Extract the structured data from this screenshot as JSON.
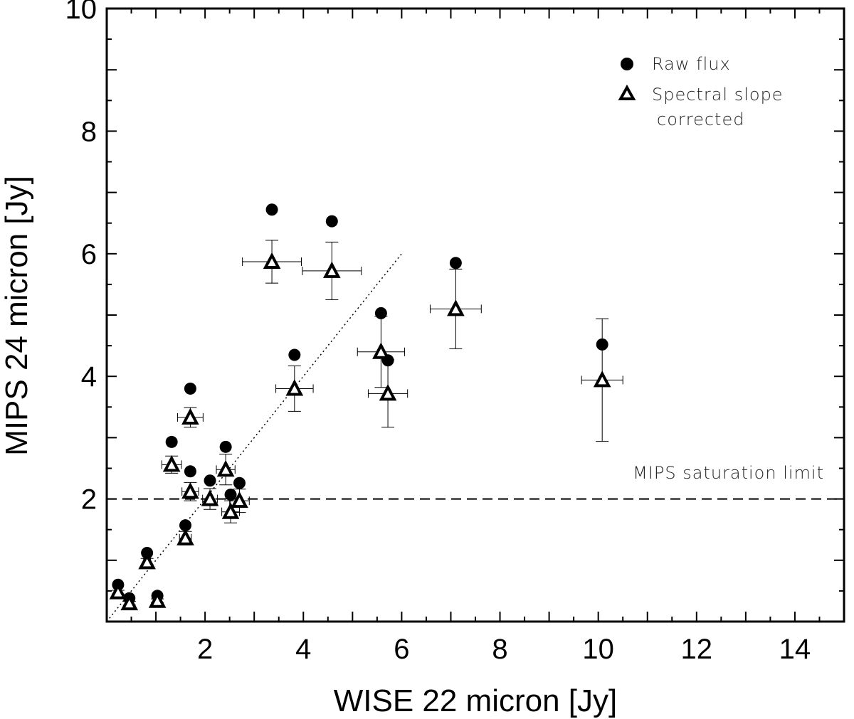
{
  "chart_data": {
    "type": "scatter",
    "xlabel": "WISE 22 micron [Jy]",
    "ylabel": "MIPS 24 micron [Jy]",
    "xlim": [
      0,
      15
    ],
    "ylim": [
      0,
      10
    ],
    "x_ticks": [
      2,
      4,
      6,
      8,
      10,
      12,
      14
    ],
    "x_tick_labels": [
      "2",
      "4",
      "6",
      "8",
      "10",
      "12",
      "14"
    ],
    "y_ticks": [
      2,
      4,
      6,
      8,
      10
    ],
    "y_tick_labels": [
      "2",
      "4",
      "6",
      "8",
      "10"
    ],
    "legend": {
      "position": "top-right",
      "entries": [
        {
          "marker": "filled-circle",
          "label": "Raw flux"
        },
        {
          "marker": "open-triangle",
          "label": "Spectral slope",
          "label2": "corrected"
        }
      ]
    },
    "reference_lines": [
      {
        "name": "MIPS saturation limit",
        "style": "dashed",
        "y": 2.0,
        "label": "MIPS saturation limit"
      },
      {
        "name": "one-to-one",
        "style": "dotted",
        "x": [
          0,
          6
        ],
        "y": [
          0,
          6
        ]
      }
    ],
    "series": [
      {
        "name": "Raw flux",
        "marker": "filled-circle",
        "points": [
          {
            "x": 0.23,
            "y": 0.6
          },
          {
            "x": 0.46,
            "y": 0.38
          },
          {
            "x": 0.82,
            "y": 1.12
          },
          {
            "x": 1.03,
            "y": 0.42
          },
          {
            "x": 1.32,
            "y": 2.93
          },
          {
            "x": 1.6,
            "y": 1.57
          },
          {
            "x": 1.7,
            "y": 2.45
          },
          {
            "x": 1.7,
            "y": 3.8
          },
          {
            "x": 2.1,
            "y": 2.3
          },
          {
            "x": 2.42,
            "y": 2.85
          },
          {
            "x": 2.52,
            "y": 2.07
          },
          {
            "x": 2.7,
            "y": 2.26
          },
          {
            "x": 3.36,
            "y": 6.72
          },
          {
            "x": 3.82,
            "y": 4.35
          },
          {
            "x": 4.58,
            "y": 6.53
          },
          {
            "x": 5.58,
            "y": 5.03
          },
          {
            "x": 5.72,
            "y": 4.26
          },
          {
            "x": 7.1,
            "y": 5.85
          },
          {
            "x": 10.08,
            "y": 4.52
          }
        ]
      },
      {
        "name": "Spectral slope corrected",
        "marker": "open-triangle",
        "points": [
          {
            "x": 0.23,
            "y": 0.48,
            "xerr": 0.05,
            "yerr": 0.03
          },
          {
            "x": 0.46,
            "y": 0.3,
            "xerr": 0.06,
            "yerr": 0.03
          },
          {
            "x": 0.82,
            "y": 0.97,
            "xerr": 0.07,
            "yerr": 0.06
          },
          {
            "x": 1.03,
            "y": 0.34,
            "xerr": 0.07,
            "yerr": 0.03
          },
          {
            "x": 1.32,
            "y": 2.56,
            "xerr": 0.2,
            "yerr": 0.14
          },
          {
            "x": 1.6,
            "y": 1.36,
            "xerr": 0.12,
            "yerr": 0.11
          },
          {
            "x": 1.7,
            "y": 2.12,
            "xerr": 0.17,
            "yerr": 0.15
          },
          {
            "x": 1.7,
            "y": 3.33,
            "xerr": 0.26,
            "yerr": 0.16
          },
          {
            "x": 2.1,
            "y": 2.0,
            "xerr": 0.15,
            "yerr": 0.17
          },
          {
            "x": 2.42,
            "y": 2.48,
            "xerr": 0.19,
            "yerr": 0.25
          },
          {
            "x": 2.52,
            "y": 1.79,
            "xerr": 0.18,
            "yerr": 0.18
          },
          {
            "x": 2.7,
            "y": 1.97,
            "xerr": 0.2,
            "yerr": 0.19
          },
          {
            "x": 3.36,
            "y": 5.87,
            "xerr": 0.6,
            "yerr": 0.35
          },
          {
            "x": 3.82,
            "y": 3.8,
            "xerr": 0.38,
            "yerr": 0.37
          },
          {
            "x": 4.58,
            "y": 5.72,
            "xerr": 0.6,
            "yerr": 0.47
          },
          {
            "x": 5.58,
            "y": 4.4,
            "xerr": 0.48,
            "yerr": 0.58
          },
          {
            "x": 5.72,
            "y": 3.72,
            "xerr": 0.4,
            "yerr": 0.55
          },
          {
            "x": 7.1,
            "y": 5.1,
            "xerr": 0.52,
            "yerr": 0.65
          },
          {
            "x": 10.08,
            "y": 3.94,
            "xerr": 0.42,
            "yerr": 1.0
          }
        ]
      }
    ]
  }
}
